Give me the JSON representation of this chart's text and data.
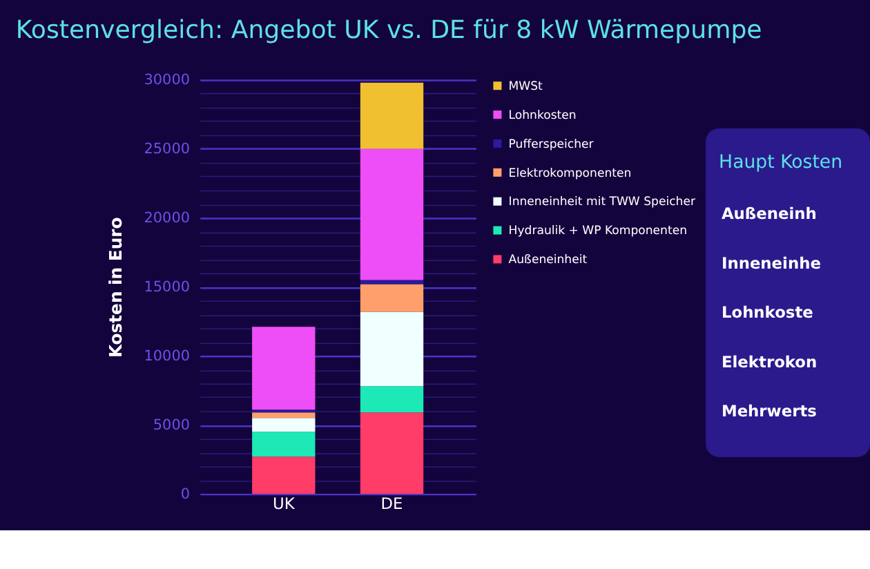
{
  "chart_data": {
    "type": "bar",
    "stacked": true,
    "title": "Kostenvergleich: Angebot UK vs. DE für 8 kW Wärmepumpe",
    "ylabel": "Kosten in Euro",
    "categories": [
      "UK",
      "DE"
    ],
    "series": [
      {
        "name": "Außeneinheit",
        "color": "#ff3d68",
        "values": [
          2700,
          5900
        ]
      },
      {
        "name": "Hydraulik + WP Komponenten",
        "color": "#1de9b6",
        "values": [
          1800,
          1900
        ]
      },
      {
        "name": "Inneneinheit mit TWW Speicher",
        "color": "#f0ffff",
        "values": [
          1000,
          5400
        ]
      },
      {
        "name": "Elektrokomponenten",
        "color": "#ffa06a",
        "values": [
          400,
          2000
        ]
      },
      {
        "name": "Pufferspeicher",
        "color": "#2a1aa0",
        "values": [
          200,
          300
        ]
      },
      {
        "name": "Lohnkosten",
        "color": "#ee4ef5",
        "values": [
          6000,
          9500
        ]
      },
      {
        "name": "MWSt",
        "color": "#f0c030",
        "values": [
          0,
          4800
        ]
      }
    ],
    "ylim": [
      0,
      30000
    ],
    "yticks": [
      0,
      {
        "value": 1000,
        "label": null
      },
      {
        "value": 2000,
        "label": null
      },
      {
        "value": 3000,
        "label": null
      },
      {
        "value": 4000,
        "label": null
      },
      5000,
      {
        "value": 6000,
        "label": null
      },
      {
        "value": 7000,
        "label": null
      },
      {
        "value": 8000,
        "label": null
      },
      {
        "value": 9000,
        "label": null
      },
      10000,
      {
        "value": 11000,
        "label": null
      },
      {
        "value": 12000,
        "label": null
      },
      {
        "value": 13000,
        "label": null
      },
      {
        "value": 14000,
        "label": null
      },
      15000,
      {
        "value": 16000,
        "label": null
      },
      {
        "value": 17000,
        "label": null
      },
      {
        "value": 18000,
        "label": null
      },
      {
        "value": 19000,
        "label": null
      },
      20000,
      {
        "value": 21000,
        "label": null
      },
      {
        "value": 22000,
        "label": null
      },
      {
        "value": 23000,
        "label": null
      },
      {
        "value": 24000,
        "label": null
      },
      25000,
      {
        "value": 26000,
        "label": null
      },
      {
        "value": 27000,
        "label": null
      },
      {
        "value": 28000,
        "label": null
      },
      {
        "value": 29000,
        "label": null
      },
      30000
    ],
    "grid": "y",
    "legend": "right",
    "annotations": [
      "Haupt Kosten",
      "Außeneinh",
      "Inneneinhe",
      "Lohnkoste",
      "Elektrokon",
      "Mehrwerts"
    ]
  }
}
